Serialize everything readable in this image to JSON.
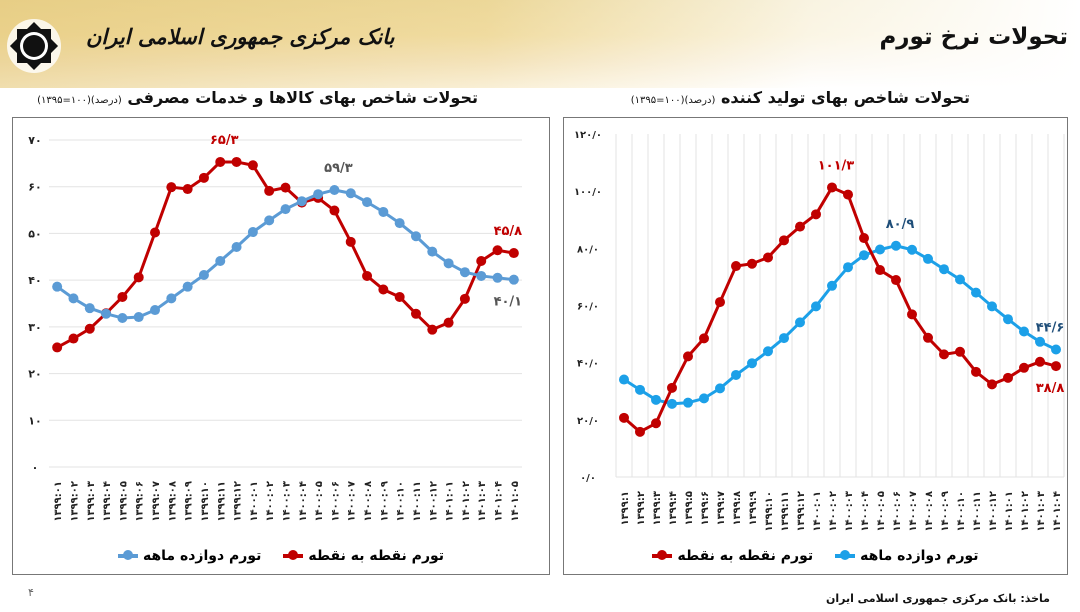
{
  "header": {
    "bank_name": "بانک مرکزی جمهوری اسلامی ایران",
    "title": "تحولات نرخ تورم",
    "logo": "cbi-logo"
  },
  "colors": {
    "red": "#C00000",
    "blue_left": "#5B9BD5",
    "blue_right": "#1CA0E8",
    "grid": "#e3e3e3"
  },
  "footer": {
    "page_number": "۴",
    "source": "ماخذ: بانک مرکزی جمهوری اسلامی ایران"
  },
  "chart_data": [
    {
      "type": "line",
      "title": "تحولات شاخص بهای کالاها و خدمات مصرفی",
      "subtitle": "(درصد)(۱۰۰=۱۳۹۵)",
      "ylim": [
        0,
        70
      ],
      "yticks": [
        0,
        10,
        20,
        30,
        40,
        50,
        60,
        70
      ],
      "ytick_labels": [
        "۰",
        "۱۰",
        "۲۰",
        "۳۰",
        "۴۰",
        "۵۰",
        "۶۰",
        "۷۰"
      ],
      "grid": "horizontal",
      "legend_position": "bottom",
      "categories": [
        "۱۳۹۹:۰۱",
        "۱۳۹۹:۰۲",
        "۱۳۹۹:۰۳",
        "۱۳۹۹:۰۴",
        "۱۳۹۹:۰۵",
        "۱۳۹۹:۰۶",
        "۱۳۹۹:۰۷",
        "۱۳۹۹:۰۸",
        "۱۳۹۹:۰۹",
        "۱۳۹۹:۱۰",
        "۱۳۹۹:۱۱",
        "۱۳۹۹:۱۲",
        "۱۴۰۰:۰۱",
        "۱۴۰۰:۰۲",
        "۱۴۰۰:۰۳",
        "۱۴۰۰:۰۴",
        "۱۴۰۰:۰۵",
        "۱۴۰۰:۰۶",
        "۱۴۰۰:۰۷",
        "۱۴۰۰:۰۸",
        "۱۴۰۰:۰۹",
        "۱۴۰۰:۱۰",
        "۱۴۰۰:۱۱",
        "۱۴۰۰:۱۲",
        "۱۴۰۱:۰۱",
        "۱۴۰۱:۰۲",
        "۱۴۰۱:۰۳",
        "۱۴۰۱:۰۴",
        "۱۴۰۱:۰۵"
      ],
      "series": [
        {
          "name": "تورم نقطه به نقطه",
          "color": "#C00000",
          "values": [
            25.6,
            27.5,
            29.6,
            32.9,
            36.4,
            40.6,
            50.2,
            59.9,
            59.5,
            61.9,
            65.3,
            65.3,
            64.6,
            59.1,
            59.8,
            56.6,
            57.6,
            54.9,
            48.2,
            40.9,
            38.0,
            36.4,
            32.8,
            29.4,
            30.9,
            36.0,
            44.1,
            46.4,
            45.8
          ],
          "data_labels": [
            {
              "index": 10,
              "text": "۶۵/۳"
            },
            {
              "index": 28,
              "text": "۴۵/۸"
            }
          ]
        },
        {
          "name": "تورم دوازده ماهه",
          "color": "#5B9BD5",
          "values": [
            38.6,
            36.1,
            34.0,
            32.8,
            31.9,
            32.1,
            33.6,
            36.1,
            38.6,
            41.1,
            44.1,
            47.1,
            50.3,
            52.8,
            55.2,
            56.9,
            58.4,
            59.3,
            58.6,
            56.7,
            54.6,
            52.2,
            49.4,
            46.1,
            43.6,
            41.7,
            40.9,
            40.5,
            40.1
          ],
          "data_labels": [
            {
              "index": 17,
              "text": "۵۹/۳"
            },
            {
              "index": 28,
              "text": "۴۰/۱"
            }
          ]
        }
      ]
    },
    {
      "type": "line",
      "title": "تحولات شاخص بهای تولید کننده",
      "subtitle": "(درصد)(۱۰۰=۱۳۹۵)",
      "ylim": [
        0,
        120
      ],
      "yticks": [
        0,
        20,
        40,
        60,
        80,
        100,
        120
      ],
      "ytick_labels": [
        "۰/۰",
        "۲۰/۰",
        "۴۰/۰",
        "۶۰/۰",
        "۸۰/۰",
        "۱۰۰/۰",
        "۱۲۰/۰"
      ],
      "grid": "vertical",
      "legend_position": "bottom",
      "categories": [
        "۱۳۹۹:۱",
        "۱۳۹۹:۲",
        "۱۳۹۹:۳",
        "۱۳۹۹:۴",
        "۱۳۹۹:۵",
        "۱۳۹۹:۶",
        "۱۳۹۹:۷",
        "۱۳۹۹:۸",
        "۱۳۹۹:۹",
        "۱۳۹۹:۱۰",
        "۱۳۹۹:۱۱",
        "۱۳۹۹:۱۲",
        "۱۴۰۰:۰۱",
        "۱۴۰۰:۰۲",
        "۱۴۰۰:۰۳",
        "۱۴۰۰:۰۴",
        "۱۴۰۰:۰۵",
        "۱۴۰۰:۰۶",
        "۱۴۰۰:۰۷",
        "۱۴۰۰:۰۸",
        "۱۴۰۰:۰۹",
        "۱۴۰۰:۱۰",
        "۱۴۰۰:۱۱",
        "۱۴۰۰:۱۲",
        "۱۴۰۱:۰۱",
        "۱۴۰۱:۰۲",
        "۱۴۰۱:۰۳",
        "۱۴۰۱:۰۴"
      ],
      "series": [
        {
          "name": "تورم دوازده ماهه",
          "color": "#1CA0E8",
          "values": [
            34.1,
            30.5,
            27.0,
            25.6,
            26.0,
            27.5,
            31.0,
            35.7,
            39.8,
            44.0,
            48.6,
            54.1,
            59.7,
            66.9,
            73.4,
            77.6,
            79.6,
            80.9,
            79.5,
            76.3,
            72.7,
            69.1,
            64.5,
            59.7,
            55.2,
            50.9,
            47.3,
            44.6
          ],
          "data_labels": [
            {
              "index": 17,
              "text": "۸۰/۹"
            },
            {
              "index": 27,
              "text": "۴۴/۶"
            }
          ]
        },
        {
          "name": "تورم نقطه به نقطه",
          "color": "#C00000",
          "values": [
            20.7,
            15.8,
            18.8,
            31.2,
            42.2,
            48.5,
            61.2,
            73.8,
            74.6,
            76.8,
            82.8,
            87.6,
            91.9,
            101.3,
            98.8,
            83.6,
            72.4,
            68.9,
            56.9,
            48.7,
            42.9,
            43.8,
            36.8,
            32.4,
            34.7,
            38.2,
            40.3,
            38.8
          ],
          "data_labels": [
            {
              "index": 13,
              "text": "۱۰۱/۳"
            },
            {
              "index": 27,
              "text": "۳۸/۸"
            }
          ]
        }
      ]
    }
  ]
}
